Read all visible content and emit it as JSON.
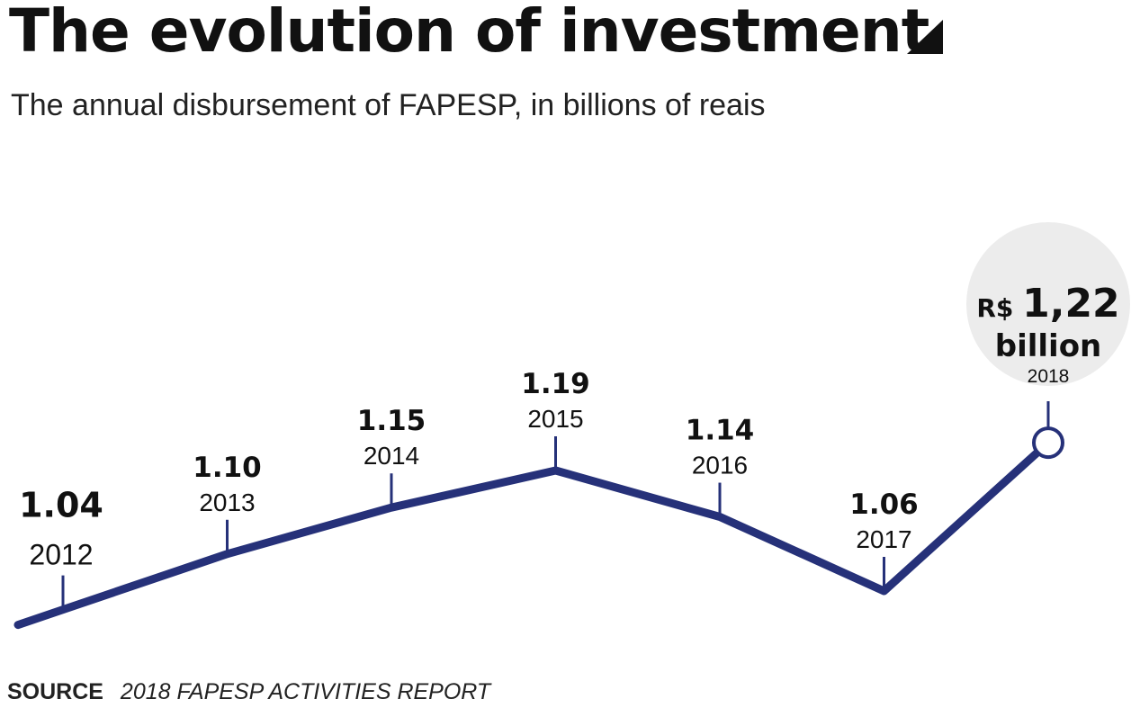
{
  "header": {
    "title": "The evolution of investment",
    "subtitle": "The annual disbursement of FAPESP, in billions of reais"
  },
  "source": {
    "label": "SOURCE",
    "text": "2018 FAPESP ACTIVITIES REPORT"
  },
  "colors": {
    "line": "#263179",
    "highlight_bg": "#ececec",
    "text": "#111111"
  },
  "chart_data": {
    "type": "line",
    "title": "The evolution of investment",
    "subtitle": "The annual disbursement of FAPESP, in billions of reais",
    "xlabel": "",
    "ylabel": "",
    "x": [
      "2012",
      "2013",
      "2014",
      "2015",
      "2016",
      "2017",
      "2018"
    ],
    "value_labels": [
      "1.04",
      "1.10",
      "1.15",
      "1.19",
      "1.14",
      "1.06",
      "1,22"
    ],
    "series": [
      {
        "values": [
          1.04,
          1.1,
          1.15,
          1.19,
          1.14,
          1.06,
          1.22
        ]
      }
    ],
    "ylim": [
      1.0,
      1.25
    ],
    "grid": false,
    "legend": "none",
    "highlight": {
      "currency": "R$",
      "value": "1,22",
      "unit": "billion",
      "year": "2018"
    }
  }
}
